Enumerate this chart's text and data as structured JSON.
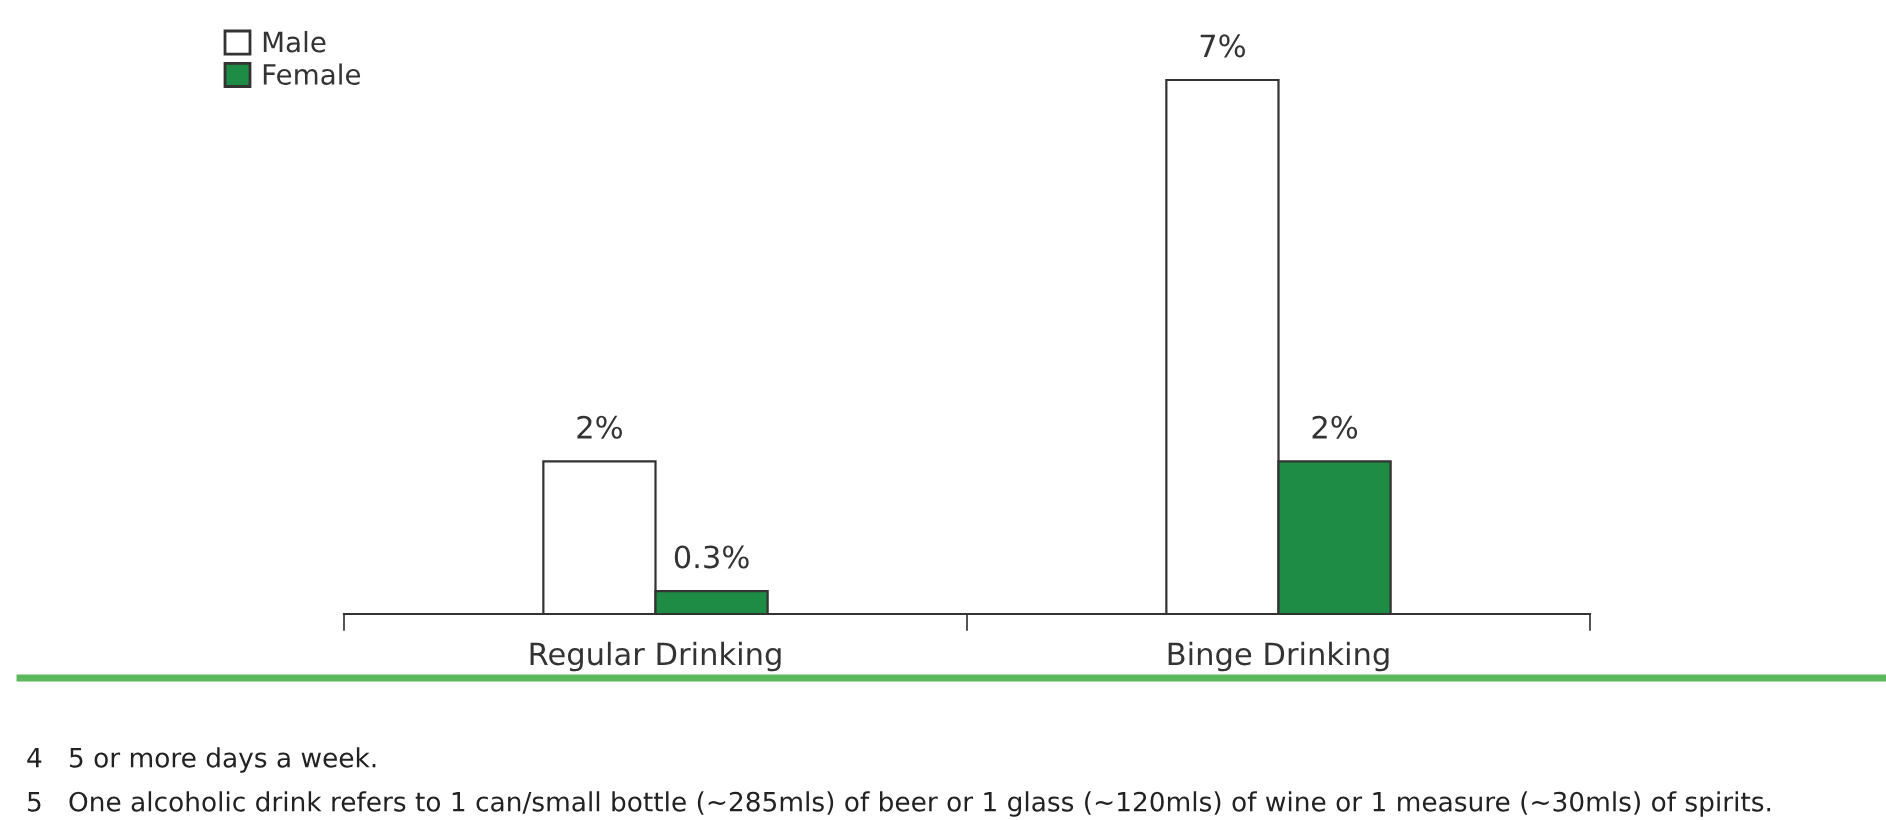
{
  "chart_data": {
    "type": "bar",
    "categories": [
      "Regular Drinking",
      "Binge Drinking"
    ],
    "series": [
      {
        "name": "Male",
        "color": "#ffffff",
        "values": [
          2,
          7
        ],
        "value_labels": [
          "2%",
          "7%"
        ]
      },
      {
        "name": "Female",
        "color": "#1e8c45",
        "values": [
          0.3,
          2
        ],
        "value_labels": [
          "0.3%",
          "2%"
        ]
      }
    ],
    "legend": "top left",
    "annotations": [
      "4   5 or more days a week.",
      "5   One alcoholic drink refers to 1 can/small bottle (~285mls) of beer or 1 glass (~120mls) of wine or 1 measure (~30mls) of spirits."
    ]
  }
}
